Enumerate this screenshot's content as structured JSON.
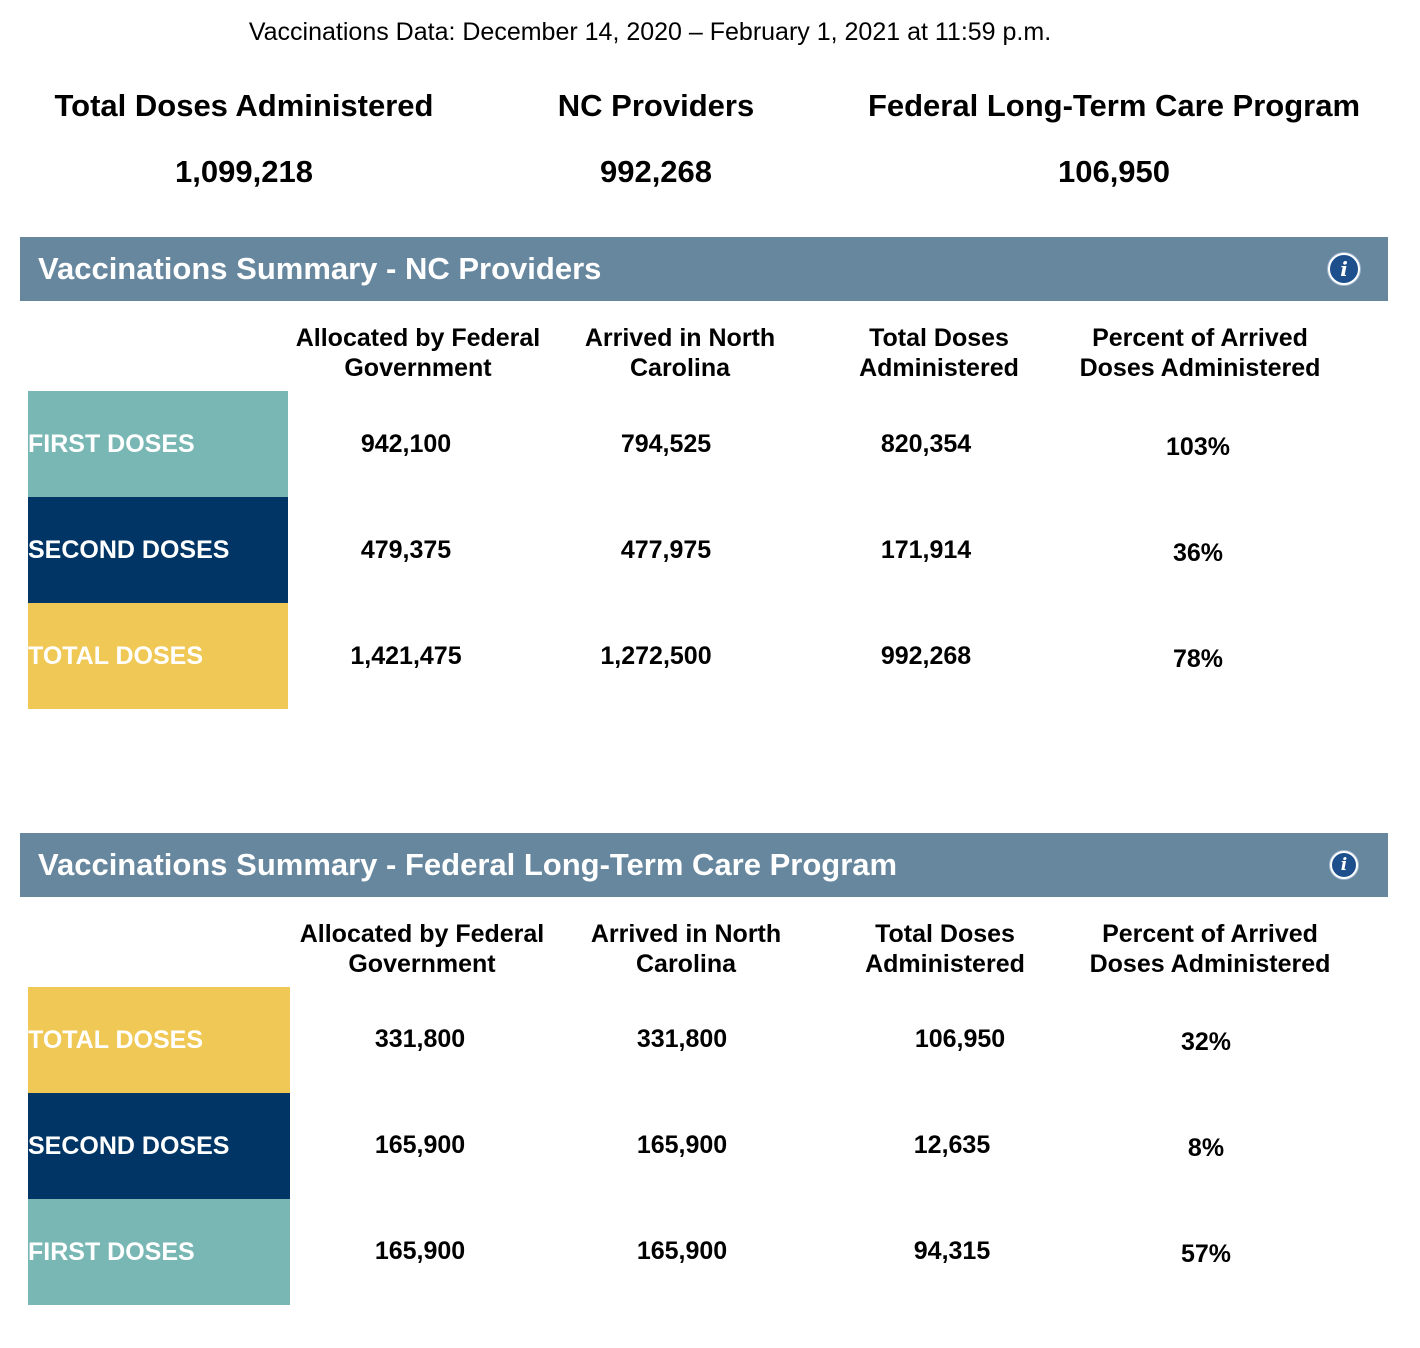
{
  "date_line": "Vaccinations Data: December 14, 2020 – February 1, 2021 at 11:59 p.m.",
  "kpis": [
    {
      "label": "Total Doses Administered",
      "value": "1,099,218"
    },
    {
      "label": "NC Providers",
      "value": "992,268"
    },
    {
      "label": "Federal Long-Term Care Program",
      "value": "106,950"
    }
  ],
  "colors": {
    "section_bar": "#67879f",
    "first_doses": "#79b7b4",
    "second_doses": "#013565",
    "total_doses": "#f0c855",
    "info_icon": "#1c4f8c"
  },
  "icons": {
    "info": "info-icon"
  },
  "sections": [
    {
      "title": "Vaccinations Summary - NC Providers",
      "info_glyph": "i",
      "columns": [
        {
          "line1": "Allocated by Federal",
          "line2": "Government"
        },
        {
          "line1": "Arrived in North",
          "line2": "Carolina"
        },
        {
          "line1": "Total Doses",
          "line2": "Administered"
        },
        {
          "line1": "Percent of Arrived",
          "line2": "Doses Administered"
        }
      ],
      "rows": [
        {
          "label": "FIRST DOSES",
          "values": [
            "942,100",
            "794,525",
            "820,354",
            "103%"
          ]
        },
        {
          "label": "SECOND DOSES",
          "values": [
            "479,375",
            "477,975",
            "171,914",
            "36%"
          ]
        },
        {
          "label": "TOTAL DOSES",
          "values": [
            "1,421,475",
            "1,272,500",
            "992,268",
            "78%"
          ]
        }
      ]
    },
    {
      "title": "Vaccinations Summary - Federal Long-Term Care Program",
      "info_glyph": "i",
      "columns": [
        {
          "line1": "Allocated by Federal",
          "line2": "Government"
        },
        {
          "line1": "Arrived in North",
          "line2": "Carolina"
        },
        {
          "line1": "Total Doses",
          "line2": "Administered"
        },
        {
          "line1": "Percent of Arrived",
          "line2": "Doses Administered"
        }
      ],
      "rows": [
        {
          "label": "TOTAL DOSES",
          "values": [
            "331,800",
            "331,800",
            "106,950",
            "32%"
          ]
        },
        {
          "label": "SECOND DOSES",
          "values": [
            "165,900",
            "165,900",
            "12,635",
            "8%"
          ]
        },
        {
          "label": "FIRST DOSES",
          "values": [
            "165,900",
            "165,900",
            "94,315",
            "57%"
          ]
        }
      ]
    }
  ]
}
